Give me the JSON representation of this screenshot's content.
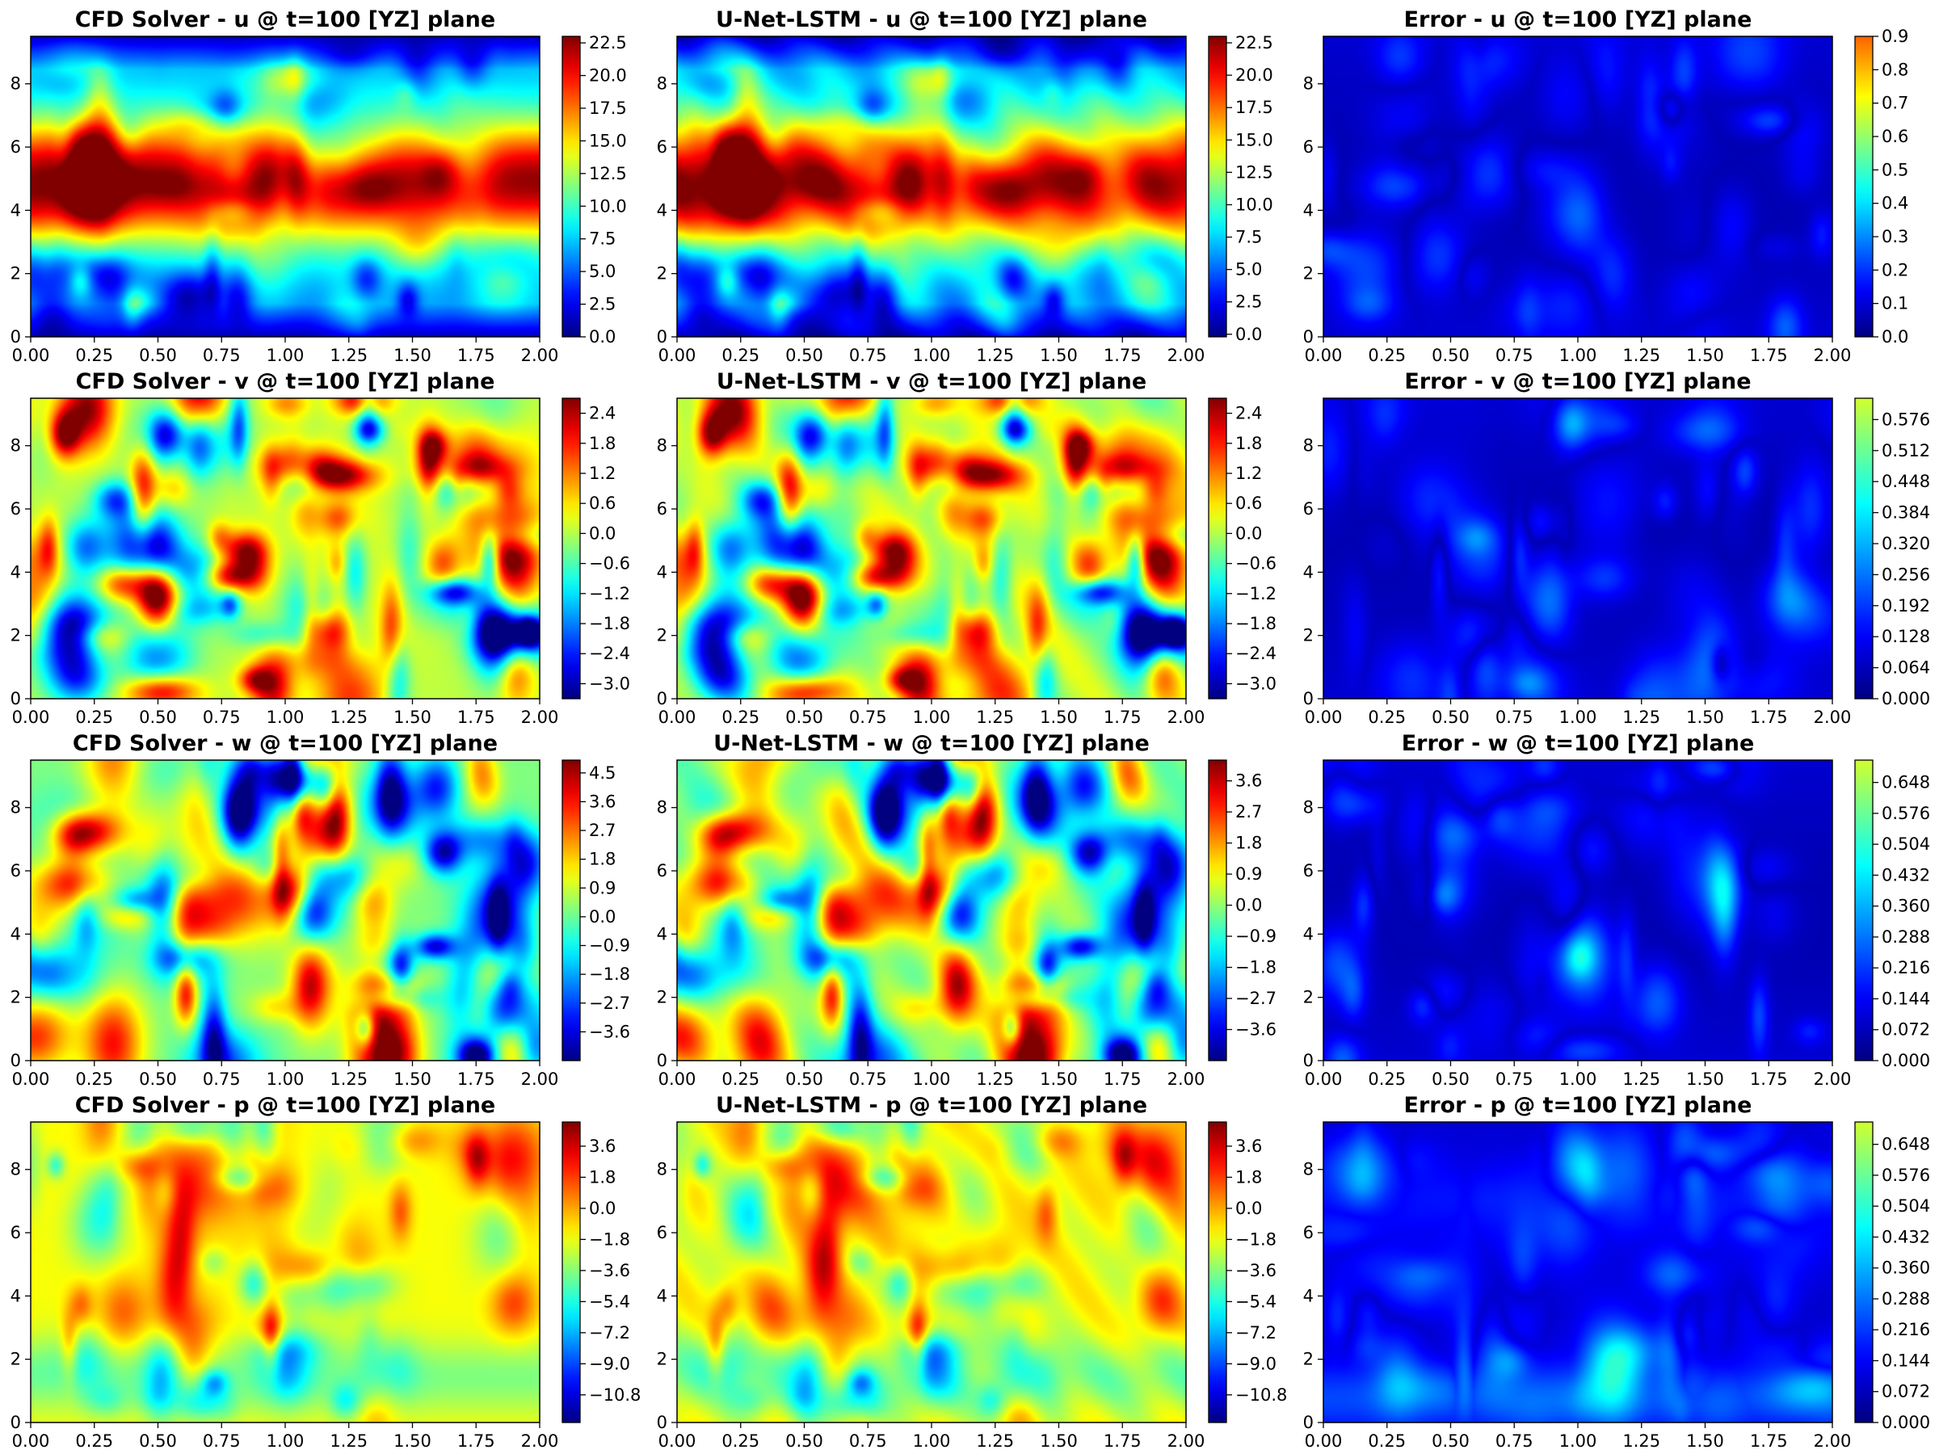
{
  "chart_data": {
    "type": "heatmap",
    "colormap": "jet",
    "xlim": [
      0,
      2.0
    ],
    "ylim": [
      0,
      9.5
    ],
    "x_ticks": [
      "0.00",
      "0.25",
      "0.50",
      "0.75",
      "1.00",
      "1.25",
      "1.50",
      "1.75",
      "2.00"
    ],
    "y_ticks": [
      "0",
      "2",
      "4",
      "6",
      "8"
    ],
    "panels": [
      {
        "title": "CFD Solver - u @ t=100 [YZ] plane",
        "field": "u",
        "kind": "solver",
        "vmin": 0,
        "vmax": 23,
        "colorbar_ticks": [
          "0.0",
          "2.5",
          "5.0",
          "7.5",
          "10.0",
          "12.5",
          "15.0",
          "17.5",
          "20.0",
          "22.5"
        ],
        "colorbar_color_max": "#7f0000"
      },
      {
        "title": "U-Net-LSTM - u @ t=100 [YZ] plane",
        "field": "u",
        "kind": "model",
        "vmin": -0.2,
        "vmax": 23,
        "colorbar_ticks": [
          "0.0",
          "2.5",
          "5.0",
          "7.5",
          "10.0",
          "12.5",
          "15.0",
          "17.5",
          "20.0",
          "22.5"
        ],
        "colorbar_color_max": "#7f0000"
      },
      {
        "title": "Error - u @ t=100 [YZ] plane",
        "field": "u",
        "kind": "error",
        "vmin": 0,
        "vmax": 0.9,
        "colorbar_ticks": [
          "0.0",
          "0.1",
          "0.2",
          "0.3",
          "0.4",
          "0.5",
          "0.6",
          "0.7",
          "0.8",
          "0.9"
        ],
        "colorbar_color_max": "#ffd000"
      },
      {
        "title": "CFD Solver - v @ t=100 [YZ] plane",
        "field": "v",
        "kind": "solver",
        "vmin": -3.3,
        "vmax": 2.7,
        "colorbar_ticks": [
          "2.4",
          "1.8",
          "1.2",
          "0.6",
          "0.0",
          "−0.6",
          "−1.2",
          "−1.8",
          "−2.4",
          "−3.0"
        ],
        "colorbar_color_max": "#7f0000"
      },
      {
        "title": "U-Net-LSTM - v @ t=100 [YZ] plane",
        "field": "v",
        "kind": "model",
        "vmin": -3.3,
        "vmax": 2.7,
        "colorbar_ticks": [
          "2.4",
          "1.8",
          "1.2",
          "0.6",
          "0.0",
          "−0.6",
          "−1.2",
          "−1.8",
          "−2.4",
          "−3.0"
        ],
        "colorbar_color_max": "#7f0000"
      },
      {
        "title": "Error - v @ t=100 [YZ] plane",
        "field": "v",
        "kind": "error",
        "vmin": 0,
        "vmax": 0.62,
        "colorbar_ticks": [
          "0.000",
          "0.064",
          "0.128",
          "0.192",
          "0.256",
          "0.320",
          "0.384",
          "0.448",
          "0.512",
          "0.576"
        ],
        "colorbar_color_max": "#5dff9a"
      },
      {
        "title": "CFD Solver - w @ t=100 [YZ] plane",
        "field": "w",
        "kind": "solver",
        "vmin": -4.5,
        "vmax": 4.9,
        "colorbar_ticks": [
          "4.5",
          "3.6",
          "2.7",
          "1.8",
          "0.9",
          "0.0",
          "−0.9",
          "−1.8",
          "−2.7",
          "−3.6"
        ],
        "colorbar_color_max": "#7f0000"
      },
      {
        "title": "U-Net-LSTM - w @ t=100 [YZ] plane",
        "field": "w",
        "kind": "model",
        "vmin": -4.5,
        "vmax": 4.2,
        "colorbar_ticks": [
          "3.6",
          "2.7",
          "1.8",
          "0.9",
          "0.0",
          "−0.9",
          "−1.8",
          "−2.7",
          "−3.6"
        ],
        "colorbar_color_max": "#7f0000"
      },
      {
        "title": "Error - w @ t=100 [YZ] plane",
        "field": "w",
        "kind": "error",
        "vmin": 0,
        "vmax": 0.7,
        "colorbar_ticks": [
          "0.000",
          "0.072",
          "0.144",
          "0.216",
          "0.288",
          "0.360",
          "0.432",
          "0.504",
          "0.576",
          "0.648"
        ],
        "colorbar_color_max": "#8aff6a"
      },
      {
        "title": "CFD Solver - p @ t=100 [YZ] plane",
        "field": "p",
        "kind": "solver",
        "vmin": -12.4,
        "vmax": 5.0,
        "colorbar_ticks": [
          "3.6",
          "1.8",
          "0.0",
          "−1.8",
          "−3.6",
          "−5.4",
          "−7.2",
          "−9.0",
          "−10.8"
        ],
        "colorbar_color_max": "#7f0000"
      },
      {
        "title": "U-Net-LSTM - p @ t=100 [YZ] plane",
        "field": "p",
        "kind": "model",
        "vmin": -12.4,
        "vmax": 5.0,
        "colorbar_ticks": [
          "3.6",
          "1.8",
          "0.0",
          "−1.8",
          "−3.6",
          "−5.4",
          "−7.2",
          "−9.0",
          "−10.8"
        ],
        "colorbar_color_max": "#7f0000"
      },
      {
        "title": "Error - p @ t=100 [YZ] plane",
        "field": "p",
        "kind": "error",
        "vmin": 0,
        "vmax": 0.7,
        "colorbar_ticks": [
          "0.000",
          "0.072",
          "0.144",
          "0.216",
          "0.288",
          "0.360",
          "0.432",
          "0.504",
          "0.576",
          "0.648"
        ],
        "colorbar_color_max": "#8aff6a"
      }
    ]
  }
}
